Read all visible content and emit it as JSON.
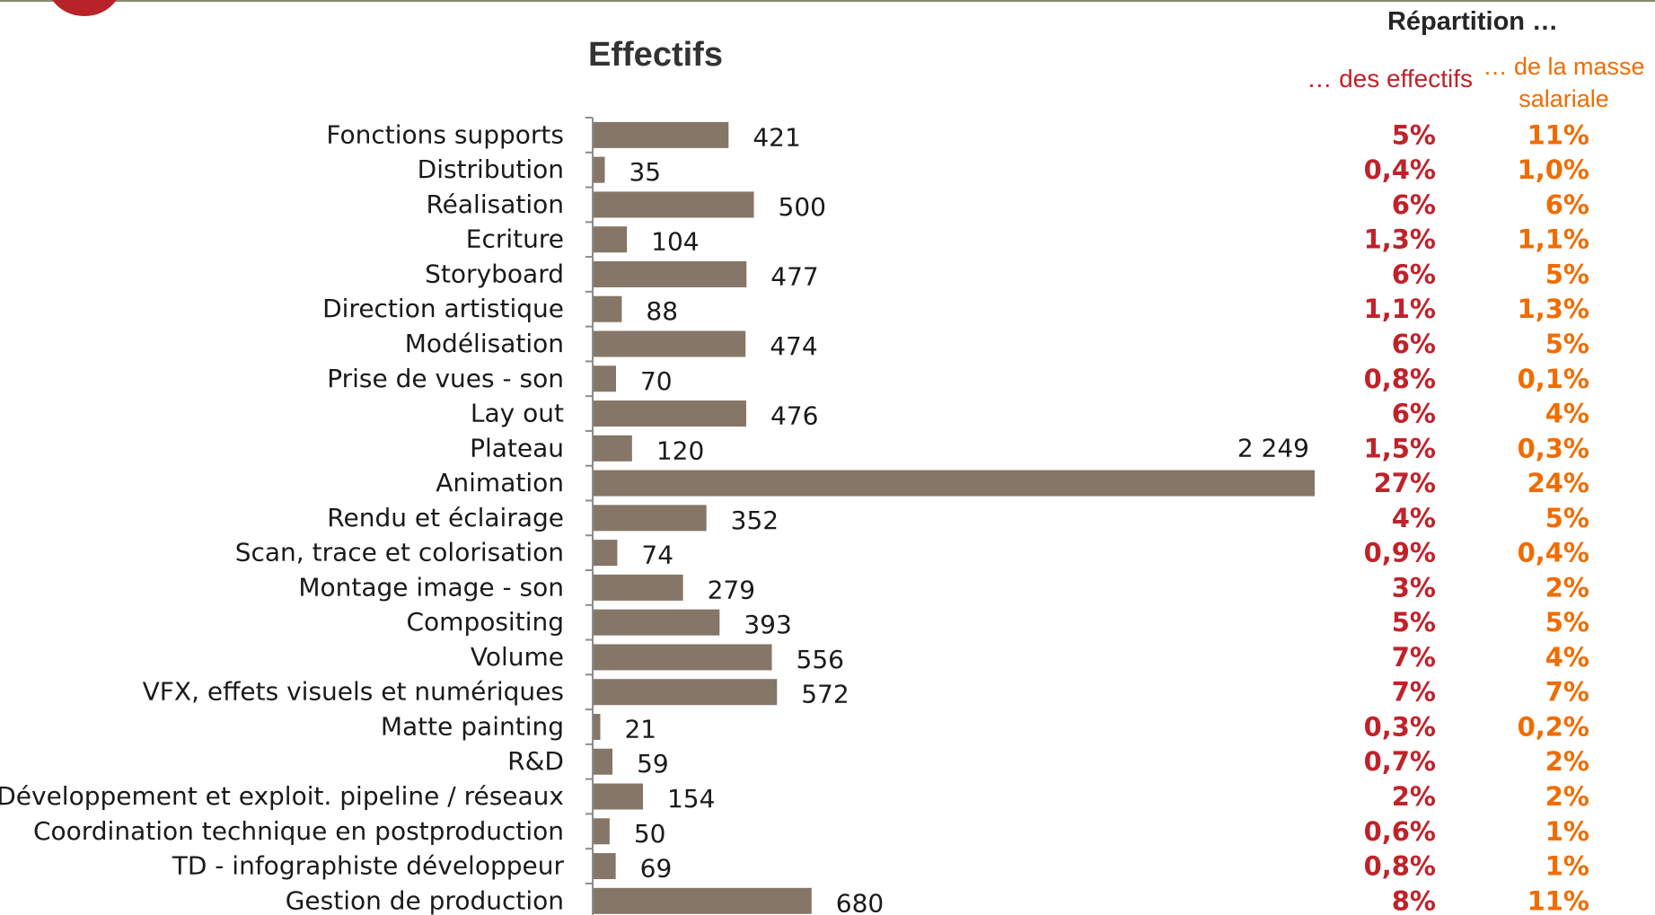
{
  "chart_data": {
    "type": "bar",
    "orientation": "horizontal",
    "title": "Effectifs",
    "categories": [
      "Fonctions supports",
      "Distribution",
      "Réalisation",
      "Ecriture",
      "Storyboard",
      "Direction artistique",
      "Modélisation",
      "Prise de vues - son",
      "Lay out",
      "Plateau",
      "Animation",
      "Rendu et éclairage",
      "Scan, trace et colorisation",
      "Montage image - son",
      "Compositing",
      "Volume",
      "VFX, effets visuels et numériques",
      "Matte painting",
      "R&D",
      "Développement et exploit. pipeline / réseaux",
      "Coordination technique en postproduction",
      "TD - infographiste développeur",
      "Gestion de production"
    ],
    "values": [
      421,
      35,
      500,
      104,
      477,
      88,
      474,
      70,
      476,
      120,
      2249,
      352,
      74,
      279,
      393,
      556,
      572,
      21,
      59,
      154,
      50,
      69,
      680
    ],
    "value_labels": [
      "421",
      "35",
      "500",
      "104",
      "477",
      "88",
      "474",
      "70",
      "476",
      "120",
      "2 249",
      "352",
      "74",
      "279",
      "393",
      "556",
      "572",
      "21",
      "59",
      "154",
      "50",
      "69",
      "680"
    ],
    "xlim": [
      0,
      2249
    ],
    "bar_color": "#857667",
    "grid": false,
    "repartition": {
      "title": "Répartition …",
      "effectifs_header": "… des effectifs",
      "masse_header": "… de la masse salariale",
      "effectifs": [
        "5%",
        "0,4%",
        "6%",
        "1,3%",
        "6%",
        "1,1%",
        "6%",
        "0,8%",
        "6%",
        "1,5%",
        "27%",
        "4%",
        "0,9%",
        "3%",
        "5%",
        "7%",
        "7%",
        "0,3%",
        "0,7%",
        "2%",
        "0,6%",
        "0,8%",
        "8%"
      ],
      "masse_salariale": [
        "11%",
        "1,0%",
        "6%",
        "1,1%",
        "5%",
        "1,3%",
        "5%",
        "0,1%",
        "4%",
        "0,3%",
        "24%",
        "5%",
        "0,4%",
        "2%",
        "5%",
        "4%",
        "7%",
        "0,2%",
        "2%",
        "2%",
        "1%",
        "1%",
        "11%"
      ],
      "effectifs_color": "#c0222a",
      "masse_color": "#f06c00"
    }
  }
}
